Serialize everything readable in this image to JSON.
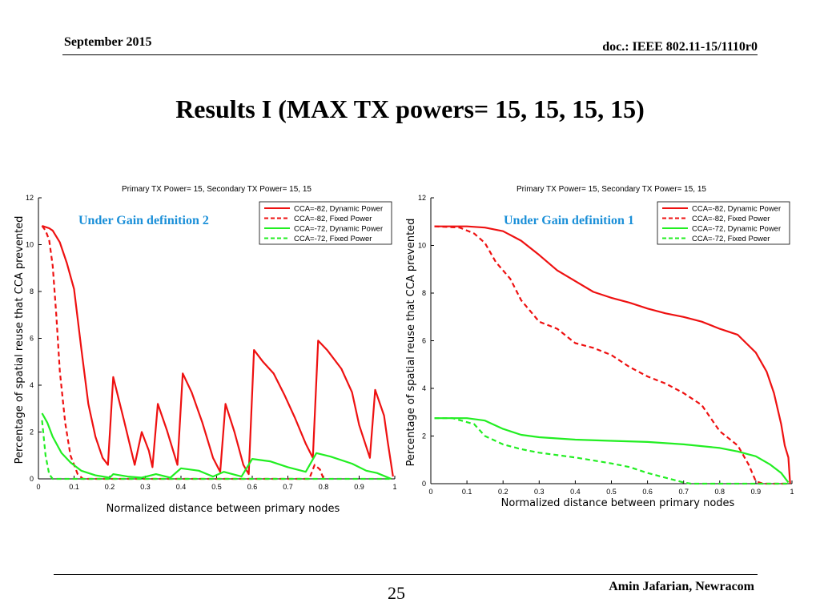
{
  "header": {
    "date": "September 2015",
    "doc": "doc.: IEEE 802.11-15/1110r0"
  },
  "slide": {
    "title": "Results I (MAX TX powers= 15, 15, 15, 15)"
  },
  "footer": {
    "page": "25",
    "author": "Amin Jafarian, Newracom"
  },
  "colors": {
    "red": "#ee1111",
    "green": "#22ee22"
  },
  "chart_data": [
    {
      "type": "line",
      "title": "Primary TX Power= 15, Secondary TX Power= 15, 15",
      "annotation": "Under Gain definition 2",
      "xlabel": "Normalized distance between primary nodes",
      "ylabel": "Percentage of spatial reuse that CCA prevented",
      "xlim": [
        0,
        1
      ],
      "ylim": [
        0,
        12
      ],
      "xticks": [
        0,
        0.1,
        0.2,
        0.3,
        0.4,
        0.5,
        0.6,
        0.7,
        0.8,
        0.9,
        1
      ],
      "yticks": [
        0,
        2,
        4,
        6,
        8,
        10,
        12
      ],
      "grid": false,
      "legend": "top-right",
      "series": [
        {
          "name": "CCA=-82, Dynamic Power",
          "color": "red",
          "dash": false,
          "points": [
            [
              0.01,
              10.8
            ],
            [
              0.03,
              10.7
            ],
            [
              0.04,
              10.6
            ],
            [
              0.06,
              10.1
            ],
            [
              0.08,
              9.2
            ],
            [
              0.1,
              8.1
            ],
            [
              0.12,
              5.6
            ],
            [
              0.14,
              3.2
            ],
            [
              0.16,
              1.8
            ],
            [
              0.18,
              0.9
            ],
            [
              0.195,
              0.6
            ],
            [
              0.21,
              4.35
            ],
            [
              0.24,
              2.5
            ],
            [
              0.27,
              0.6
            ],
            [
              0.29,
              2.0
            ],
            [
              0.31,
              1.2
            ],
            [
              0.32,
              0.5
            ],
            [
              0.335,
              3.2
            ],
            [
              0.36,
              2.1
            ],
            [
              0.39,
              0.6
            ],
            [
              0.405,
              4.5
            ],
            [
              0.43,
              3.7
            ],
            [
              0.46,
              2.4
            ],
            [
              0.49,
              0.9
            ],
            [
              0.51,
              0.3
            ],
            [
              0.525,
              3.2
            ],
            [
              0.55,
              2.0
            ],
            [
              0.575,
              0.6
            ],
            [
              0.59,
              0.2
            ],
            [
              0.605,
              5.5
            ],
            [
              0.63,
              5.0
            ],
            [
              0.66,
              4.5
            ],
            [
              0.69,
              3.6
            ],
            [
              0.72,
              2.6
            ],
            [
              0.75,
              1.5
            ],
            [
              0.77,
              0.9
            ],
            [
              0.785,
              5.9
            ],
            [
              0.81,
              5.5
            ],
            [
              0.85,
              4.7
            ],
            [
              0.88,
              3.7
            ],
            [
              0.9,
              2.3
            ],
            [
              0.93,
              0.9
            ],
            [
              0.945,
              3.8
            ],
            [
              0.97,
              2.7
            ],
            [
              0.98,
              1.6
            ],
            [
              0.995,
              0.1
            ]
          ]
        },
        {
          "name": "CCA=-82, Fixed Power",
          "color": "red",
          "dash": true,
          "points": [
            [
              0.01,
              10.8
            ],
            [
              0.02,
              10.6
            ],
            [
              0.03,
              10.2
            ],
            [
              0.04,
              9.1
            ],
            [
              0.05,
              7.0
            ],
            [
              0.06,
              4.6
            ],
            [
              0.075,
              2.4
            ],
            [
              0.09,
              1.0
            ],
            [
              0.11,
              0.2
            ],
            [
              0.125,
              0
            ],
            [
              0.76,
              0
            ],
            [
              0.775,
              0.6
            ],
            [
              0.79,
              0.4
            ],
            [
              0.8,
              0
            ]
          ]
        },
        {
          "name": "CCA=-72, Dynamic Power",
          "color": "green",
          "dash": false,
          "points": [
            [
              0.01,
              2.8
            ],
            [
              0.025,
              2.4
            ],
            [
              0.04,
              1.8
            ],
            [
              0.065,
              1.1
            ],
            [
              0.09,
              0.7
            ],
            [
              0.12,
              0.35
            ],
            [
              0.16,
              0.15
            ],
            [
              0.2,
              0.05
            ],
            [
              0.21,
              0.2
            ],
            [
              0.25,
              0.1
            ],
            [
              0.29,
              0.05
            ],
            [
              0.33,
              0.2
            ],
            [
              0.37,
              0.05
            ],
            [
              0.4,
              0.45
            ],
            [
              0.45,
              0.35
            ],
            [
              0.49,
              0.1
            ],
            [
              0.52,
              0.3
            ],
            [
              0.57,
              0.1
            ],
            [
              0.6,
              0.85
            ],
            [
              0.65,
              0.75
            ],
            [
              0.7,
              0.5
            ],
            [
              0.75,
              0.3
            ],
            [
              0.78,
              1.1
            ],
            [
              0.82,
              0.95
            ],
            [
              0.88,
              0.65
            ],
            [
              0.92,
              0.35
            ],
            [
              0.95,
              0.25
            ],
            [
              0.99,
              0.0
            ]
          ]
        },
        {
          "name": "CCA=-72, Fixed Power",
          "color": "green",
          "dash": true,
          "points": [
            [
              0.01,
              2.5
            ],
            [
              0.02,
              1.0
            ],
            [
              0.03,
              0.2
            ],
            [
              0.04,
              0
            ],
            [
              0.99,
              0
            ]
          ]
        }
      ]
    },
    {
      "type": "line",
      "title": "Primary TX Power= 15, Secondary TX Power= 15, 15",
      "annotation": "Under Gain definition 1",
      "xlabel": "Normalized distance between primary nodes",
      "ylabel": "Percentage of spatial reuse that CCA prevented",
      "xlim": [
        0,
        1
      ],
      "ylim": [
        0,
        12
      ],
      "xticks": [
        0,
        0.1,
        0.2,
        0.3,
        0.4,
        0.5,
        0.6,
        0.7,
        0.8,
        0.9,
        1
      ],
      "yticks": [
        0,
        2,
        4,
        6,
        8,
        10,
        12
      ],
      "grid": false,
      "legend": "top-right",
      "series": [
        {
          "name": "CCA=-82, Dynamic Power",
          "color": "red",
          "dash": false,
          "points": [
            [
              0.01,
              10.8
            ],
            [
              0.1,
              10.8
            ],
            [
              0.15,
              10.75
            ],
            [
              0.2,
              10.6
            ],
            [
              0.25,
              10.2
            ],
            [
              0.3,
              9.6
            ],
            [
              0.35,
              8.95
            ],
            [
              0.4,
              8.5
            ],
            [
              0.45,
              8.05
            ],
            [
              0.5,
              7.8
            ],
            [
              0.55,
              7.6
            ],
            [
              0.6,
              7.35
            ],
            [
              0.65,
              7.15
            ],
            [
              0.7,
              7.0
            ],
            [
              0.75,
              6.8
            ],
            [
              0.8,
              6.5
            ],
            [
              0.85,
              6.25
            ],
            [
              0.9,
              5.5
            ],
            [
              0.93,
              4.7
            ],
            [
              0.95,
              3.8
            ],
            [
              0.97,
              2.5
            ],
            [
              0.98,
              1.6
            ],
            [
              0.99,
              1.1
            ],
            [
              0.995,
              0
            ]
          ]
        },
        {
          "name": "CCA=-82, Fixed Power",
          "color": "red",
          "dash": true,
          "points": [
            [
              0.01,
              10.8
            ],
            [
              0.08,
              10.75
            ],
            [
              0.12,
              10.5
            ],
            [
              0.15,
              10.1
            ],
            [
              0.18,
              9.3
            ],
            [
              0.22,
              8.6
            ],
            [
              0.25,
              7.7
            ],
            [
              0.3,
              6.8
            ],
            [
              0.35,
              6.5
            ],
            [
              0.4,
              5.9
            ],
            [
              0.45,
              5.7
            ],
            [
              0.5,
              5.4
            ],
            [
              0.55,
              4.9
            ],
            [
              0.6,
              4.5
            ],
            [
              0.65,
              4.2
            ],
            [
              0.7,
              3.8
            ],
            [
              0.75,
              3.3
            ],
            [
              0.8,
              2.2
            ],
            [
              0.85,
              1.6
            ],
            [
              0.88,
              0.8
            ],
            [
              0.9,
              0.1
            ],
            [
              0.92,
              0
            ],
            [
              0.99,
              0
            ]
          ]
        },
        {
          "name": "CCA=-72, Dynamic Power",
          "color": "green",
          "dash": false,
          "points": [
            [
              0.01,
              2.75
            ],
            [
              0.1,
              2.75
            ],
            [
              0.15,
              2.65
            ],
            [
              0.2,
              2.3
            ],
            [
              0.25,
              2.05
            ],
            [
              0.3,
              1.95
            ],
            [
              0.4,
              1.85
            ],
            [
              0.5,
              1.8
            ],
            [
              0.6,
              1.75
            ],
            [
              0.7,
              1.65
            ],
            [
              0.8,
              1.5
            ],
            [
              0.85,
              1.35
            ],
            [
              0.9,
              1.15
            ],
            [
              0.94,
              0.8
            ],
            [
              0.97,
              0.45
            ],
            [
              0.99,
              0.05
            ]
          ]
        },
        {
          "name": "CCA=-72, Fixed Power",
          "color": "green",
          "dash": true,
          "points": [
            [
              0.01,
              2.75
            ],
            [
              0.06,
              2.75
            ],
            [
              0.12,
              2.5
            ],
            [
              0.15,
              2.0
            ],
            [
              0.2,
              1.65
            ],
            [
              0.25,
              1.45
            ],
            [
              0.3,
              1.3
            ],
            [
              0.4,
              1.1
            ],
            [
              0.5,
              0.85
            ],
            [
              0.55,
              0.7
            ],
            [
              0.6,
              0.45
            ],
            [
              0.65,
              0.25
            ],
            [
              0.7,
              0.05
            ],
            [
              0.72,
              0
            ],
            [
              0.99,
              0
            ]
          ]
        }
      ]
    }
  ]
}
